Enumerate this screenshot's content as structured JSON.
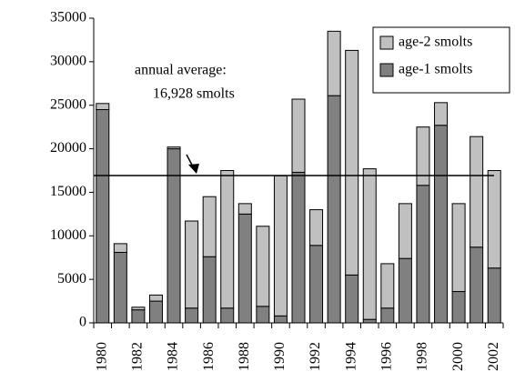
{
  "chart_data": {
    "type": "stacked-bar",
    "categories": [
      "1980",
      null,
      "1982",
      null,
      "1984",
      null,
      "1986",
      null,
      "1988",
      null,
      "1990",
      null,
      "1992",
      null,
      "1994",
      null,
      "1996",
      null,
      "1998",
      null,
      "2000",
      null,
      "2002"
    ],
    "series": [
      {
        "name": "age-1 smolts",
        "color": "#808080",
        "values": [
          24500,
          8100,
          1500,
          2500,
          20000,
          1700,
          7600,
          1700,
          12500,
          1900,
          800,
          17300,
          8900,
          26100,
          5500,
          400,
          1700,
          7400,
          15800,
          22700,
          3600,
          8700,
          6300
        ]
      },
      {
        "name": "age-2 smolts",
        "color": "#c0c0c0",
        "values": [
          700,
          1000,
          300,
          700,
          200,
          10000,
          6900,
          15800,
          1200,
          9200,
          16100,
          8400,
          4100,
          7400,
          25800,
          17300,
          5100,
          6300,
          6700,
          2600,
          10100,
          12700,
          11200
        ]
      }
    ],
    "ylim": [
      0,
      35000
    ],
    "yticks": [
      0,
      5000,
      10000,
      15000,
      20000,
      25000,
      30000,
      35000
    ],
    "average": 16928,
    "annotation": [
      "annual average:",
      "16,928 smolts"
    ],
    "legend": "top-right"
  }
}
